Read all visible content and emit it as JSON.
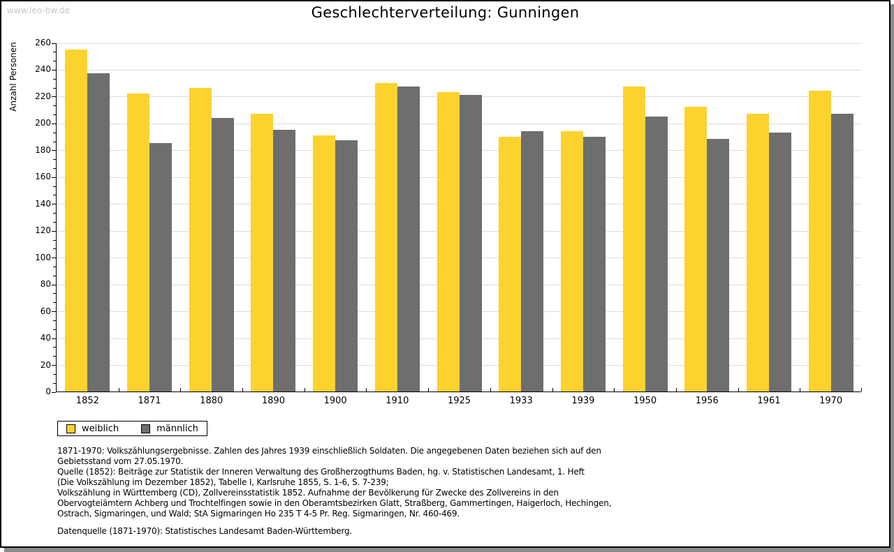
{
  "page": {
    "watermark": "www.leo-bw.de",
    "title": "Geschlechterverteilung: Gunningen"
  },
  "chart_data": {
    "type": "bar",
    "title": "Geschlechterverteilung: Gunningen",
    "xlabel": "",
    "ylabel": "Anzahl Personen",
    "ylim": [
      0,
      260
    ],
    "ytick_step": 20,
    "grid": true,
    "legend_position": "bottom-left",
    "categories": [
      "1852",
      "1871",
      "1880",
      "1890",
      "1900",
      "1910",
      "1925",
      "1933",
      "1939",
      "1950",
      "1956",
      "1961",
      "1970"
    ],
    "series": [
      {
        "name": "weiblich",
        "color": "#fcd22e",
        "values": [
          255,
          222,
          226,
          207,
          191,
          230,
          223,
          190,
          194,
          227,
          212,
          207,
          224
        ]
      },
      {
        "name": "männlich",
        "color": "#6e6e6e",
        "values": [
          237,
          185,
          204,
          195,
          187,
          227,
          221,
          194,
          190,
          205,
          188,
          193,
          207
        ]
      }
    ]
  },
  "legend": {
    "items": [
      {
        "label": "weiblich",
        "color": "#fcd22e"
      },
      {
        "label": "männlich",
        "color": "#6e6e6e"
      }
    ]
  },
  "footnotes": {
    "lines": [
      "1871-1970: Volkszählungsergebnisse. Zahlen des Jahres 1939 einschließlich Soldaten. Die angegebenen Daten beziehen sich auf den",
      "Gebietsstand vom 27.05.1970.",
      "Quelle (1852): Beiträge zur Statistik der Inneren Verwaltung des Großherzogthums Baden, hg. v. Statistischen Landesamt, 1. Heft",
      "(Die Volkszählung im Dezember 1852), Tabelle I, Karlsruhe 1855, S. 1-6, S. 7-239;",
      "Volkszählung in Württemberg (CD), Zollvereinsstatistik 1852. Aufnahme der Bevölkerung für Zwecke des Zollvereins in den",
      "Obervogteiämtern Achberg und Trochtelfingen sowie in den Oberamtsbezirken Glatt, Straßberg, Gammertingen, Haigerloch, Hechingen,",
      "Ostrach, Sigmaringen, und Wald; StA Sigmaringen Ho 235 T 4-5 Pr. Reg. Sigmaringen, Nr. 460-469."
    ],
    "datasource": "Datenquelle (1871-1970): Statistisches Landesamt Baden-Württemberg."
  },
  "colors": {
    "female": "#fcd22e",
    "male": "#6e6e6e",
    "gridline": "#dcdcdc",
    "watermark": "#c6c6c6",
    "shadow": "#8a8a8a",
    "border": "#000000"
  }
}
